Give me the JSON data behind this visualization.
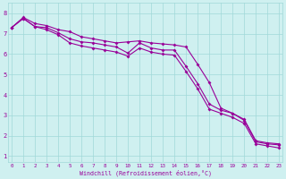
{
  "xlabel": "Windchill (Refroidissement éolien,°C)",
  "bg_color": "#cff0f0",
  "line_color": "#990099",
  "grid_color": "#a0d8d8",
  "x_ticks": [
    0,
    1,
    2,
    3,
    4,
    5,
    6,
    7,
    8,
    9,
    10,
    11,
    12,
    13,
    14,
    15,
    16,
    17,
    18,
    19,
    20,
    21,
    22,
    23
  ],
  "y_ticks": [
    1,
    2,
    3,
    4,
    5,
    6,
    7,
    8
  ],
  "ylim": [
    0.7,
    8.5
  ],
  "xlim": [
    -0.3,
    23.3
  ],
  "line_top": [
    7.3,
    7.8,
    7.5,
    7.4,
    7.2,
    7.1,
    6.85,
    6.75,
    6.65,
    6.55,
    6.6,
    6.65,
    6.55,
    6.5,
    6.45,
    6.35,
    5.5,
    4.6,
    3.35,
    3.1,
    2.8,
    1.75,
    1.65,
    1.6
  ],
  "line_mid": [
    7.3,
    7.75,
    7.35,
    7.3,
    7.05,
    6.75,
    6.6,
    6.55,
    6.45,
    6.35,
    6.05,
    6.55,
    6.3,
    6.2,
    6.2,
    5.4,
    4.55,
    3.55,
    3.25,
    3.1,
    2.75,
    1.7,
    1.6,
    1.55
  ],
  "line_bot": [
    7.3,
    7.75,
    7.35,
    7.2,
    6.95,
    6.55,
    6.4,
    6.3,
    6.2,
    6.1,
    5.9,
    6.3,
    6.1,
    6.0,
    5.95,
    5.15,
    4.3,
    3.3,
    3.1,
    2.9,
    2.6,
    1.6,
    1.5,
    1.4
  ]
}
